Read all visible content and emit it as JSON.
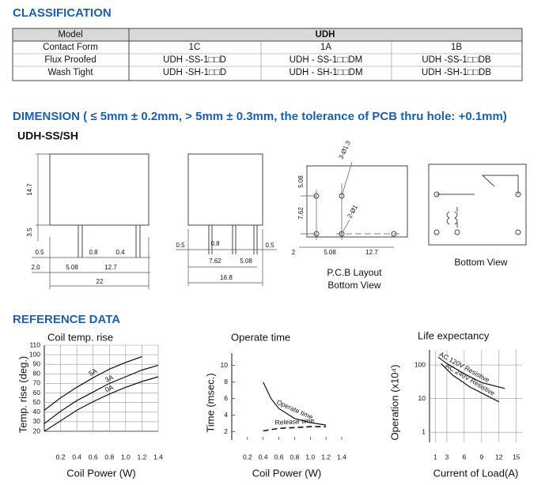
{
  "classification": {
    "title": "CLASSIFICATION",
    "table": {
      "header": [
        "Model",
        "UDH"
      ],
      "rows": [
        [
          "Contact Form",
          "1C",
          "1A",
          "1B"
        ],
        [
          "Flux Proofed",
          "UDH -SS-1□□D",
          "UDH - SS-1□□DM",
          "UDH -SS-1□□DB"
        ],
        [
          "Wash Tight",
          "UDH -SH-1□□D",
          "UDH - SH-1□□DM",
          "UDH -SH-1□□DB"
        ]
      ]
    }
  },
  "dimension": {
    "title": "DIMENSION ( ≤ 5mm ± 0.2mm, > 5mm ± 0.3mm, the tolerance of PCB thru hole: +0.1mm)",
    "model": "UDH-SS/SH",
    "side_view": [
      "14.7",
      "3.5",
      "0.5",
      "0.8",
      "0.4",
      "2.0",
      "5.08",
      "12.7",
      "22"
    ],
    "front_view": [
      "0.5",
      "0.8",
      "0.5",
      "7.62",
      "5.08",
      "16.8"
    ],
    "pcb_layout": [
      "3-Ø1.3",
      "5.08",
      "7.62",
      "2-Ø1",
      "2",
      "5.08",
      "12.7",
      "P.C.B Layout",
      "Bottom View"
    ],
    "bottom_view": "Bottom View"
  },
  "reference": {
    "title": "REFERENCE DATA",
    "charts": [
      {
        "type": "line",
        "title": "Coil temp. rise",
        "x_label": "Coil Power (W)",
        "y_label": "Temp. rise (deg.)",
        "xlim": [
          0,
          1.4
        ],
        "ylim": [
          20,
          110
        ],
        "grid": true,
        "log_y": false,
        "xticks": [
          0.2,
          0.4,
          0.6,
          0.8,
          {
            "value": 1,
            "label": "1.0"
          },
          1.2,
          1.4
        ],
        "yticks": [
          20,
          30,
          40,
          50,
          60,
          70,
          80,
          90,
          100,
          110
        ],
        "series": [
          {
            "name": "5A",
            "color": "#111111",
            "x": [
              0,
              0.2,
              0.4,
              0.6,
              0.8,
              1,
              1.2
            ],
            "values": [
              42,
              55,
              66,
              76,
              85,
              92,
              98
            ]
          },
          {
            "name": "3A",
            "color": "#111111",
            "x": [
              0,
              0.2,
              0.4,
              0.6,
              0.8,
              1,
              1.2,
              1.4
            ],
            "values": [
              28,
              41,
              52,
              61,
              70,
              77,
              84,
              89
            ]
          },
          {
            "name": "0A",
            "color": "#111111",
            "x": [
              0,
              0.2,
              0.4,
              0.6,
              0.8,
              1,
              1.2,
              1.4
            ],
            "values": [
              20,
              31,
              42,
              51,
              59,
              66,
              72,
              77
            ]
          }
        ]
      },
      {
        "type": "line",
        "title": "Operate time",
        "x_label": "Coil Power (W)",
        "y_label": "Time (msec.)",
        "xlim": [
          0,
          1.4
        ],
        "ylim": [
          1,
          11.5
        ],
        "grid": false,
        "log_y": false,
        "xticks": [
          0.2,
          0.4,
          0.6,
          0.8,
          {
            "value": 1,
            "label": "1.0"
          },
          1.2,
          1.4
        ],
        "yticks": [
          2,
          4,
          6,
          8,
          10
        ],
        "series": [
          {
            "name": "Operate time",
            "color": "#111111",
            "dash": false,
            "x": [
              0.4,
              0.5,
              0.6,
              0.8,
              1,
              1.2
            ],
            "values": [
              8,
              6,
              4.8,
              3.6,
              3.1,
              2.8
            ]
          },
          {
            "name": "Release time",
            "color": "#111111",
            "dash": true,
            "x": [
              0.4,
              0.6,
              0.8,
              1,
              1.2
            ],
            "values": [
              2.1,
              2.4,
              2.5,
              2.6,
              2.6
            ]
          }
        ]
      },
      {
        "type": "line",
        "title": "Life expectancy",
        "x_label": "Current of Load(A)",
        "y_label": "Operation (x10⁴)",
        "xlim": [
          0,
          16
        ],
        "ylim": [
          0.5,
          280
        ],
        "grid": true,
        "log_y": true,
        "xticks": [
          1,
          3,
          6,
          9,
          12,
          15
        ],
        "yticks": [
          1,
          10,
          100
        ],
        "series": [
          {
            "name": "AC 120V Resistive",
            "color": "#111111",
            "x": [
              1.5,
              3,
              6,
              9,
              13
            ],
            "values": [
              170,
              110,
              55,
              30,
              20
            ]
          },
          {
            "name": "AC 240V Resistive",
            "color": "#111111",
            "x": [
              2,
              4,
              7,
              10,
              12
            ],
            "values": [
              110,
              50,
              22,
              12,
              8
            ]
          }
        ]
      }
    ]
  }
}
